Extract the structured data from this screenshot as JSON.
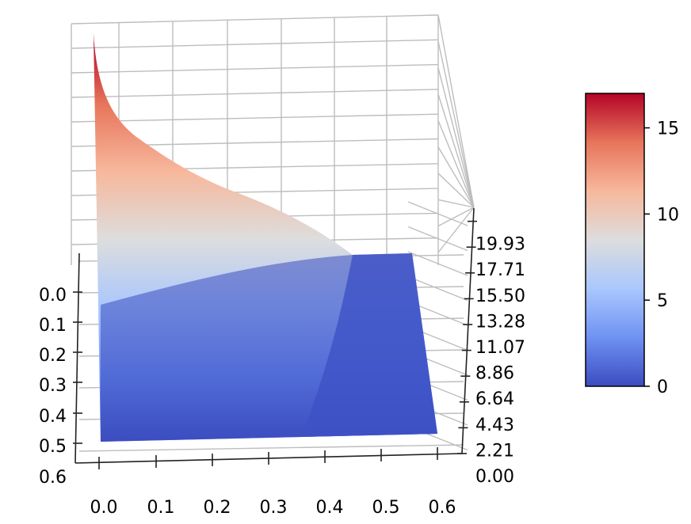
{
  "chart_data": {
    "type": "surface3d",
    "title": "",
    "xlabel": "",
    "ylabel": "",
    "zlabel": "",
    "colormap": "coolwarm",
    "x_ticks": [
      "0.0",
      "0.1",
      "0.2",
      "0.3",
      "0.4",
      "0.5",
      "0.6"
    ],
    "y_ticks": [
      "0.0",
      "0.1",
      "0.2",
      "0.3",
      "0.4",
      "0.5",
      "0.6"
    ],
    "z_ticks": [
      "0.00",
      "2.21",
      "4.43",
      "6.64",
      "8.86",
      "11.07",
      "13.28",
      "15.50",
      "17.71",
      "19.93"
    ],
    "xlim": [
      0,
      0.6
    ],
    "ylim": [
      0,
      0.6
    ],
    "zlim": [
      0,
      19.93
    ],
    "surface_max": 17,
    "surface_min": 0,
    "colorbar": {
      "ticks": [
        "0",
        "5",
        "10",
        "15"
      ],
      "range": [
        0,
        17
      ],
      "colors": [
        "#3b4cc0",
        "#6f92f3",
        "#aac7fd",
        "#dddddd",
        "#f7b89c",
        "#e7745b",
        "#b40426"
      ]
    },
    "grid": true
  }
}
